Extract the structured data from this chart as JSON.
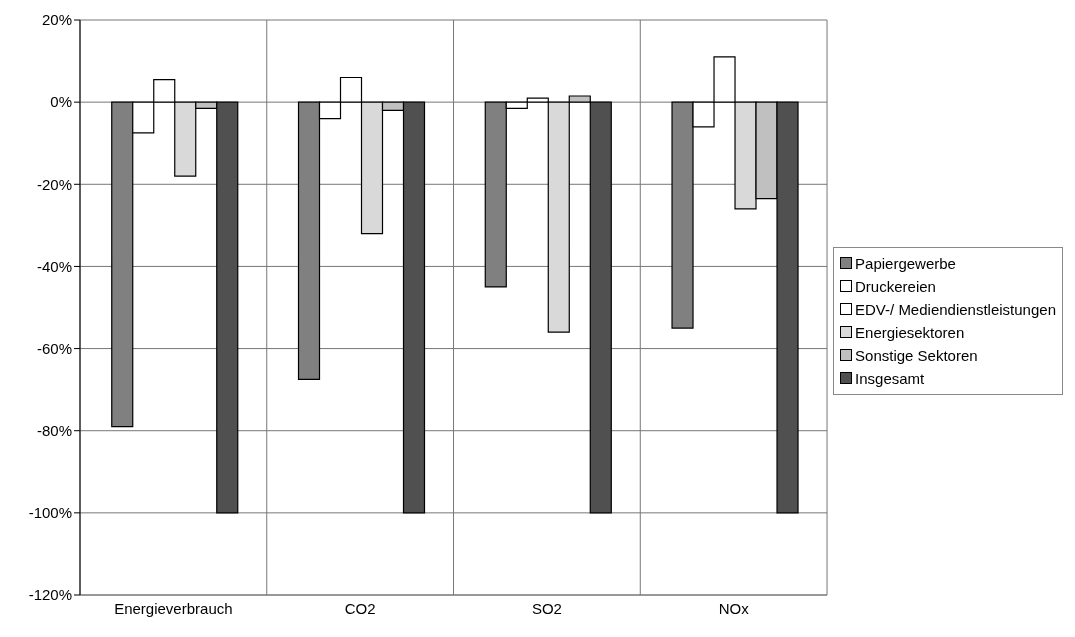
{
  "chart_data": {
    "type": "bar",
    "categories": [
      "Energieverbrauch",
      "CO2",
      "SO2",
      "NOx"
    ],
    "series": [
      {
        "name": "Papiergewerbe",
        "color": "#808080",
        "values": [
          -79,
          -67.5,
          -45,
          -55
        ]
      },
      {
        "name": "Druckereien",
        "color": "#ffffff",
        "values": [
          -7.5,
          -4,
          -1.5,
          -6
        ]
      },
      {
        "name": "EDV-/ Mediendienstleistungen",
        "color": "#ffffff",
        "values": [
          5.5,
          6,
          1,
          11
        ]
      },
      {
        "name": "Energiesektoren",
        "color": "#d9d9d9",
        "values": [
          -18,
          -32,
          -56,
          -26
        ]
      },
      {
        "name": "Sonstige Sektoren",
        "color": "#c0c0c0",
        "values": [
          -1.5,
          -2,
          1.5,
          -23.5
        ]
      },
      {
        "name": "Insgesamt",
        "color": "#505050",
        "values": [
          -100,
          -100,
          -100,
          -100
        ]
      }
    ],
    "ylim": [
      -120,
      20
    ],
    "yticks": [
      {
        "value": -120,
        "label": "-120%"
      },
      {
        "value": -100,
        "label": "-100%"
      },
      {
        "value": -80,
        "label": "-80%"
      },
      {
        "value": -60,
        "label": "-60%"
      },
      {
        "value": -40,
        "label": "-40%"
      },
      {
        "value": -20,
        "label": "-20%"
      },
      {
        "value": 0,
        "label": "0%"
      },
      {
        "value": 20,
        "label": "20%"
      }
    ],
    "grid": true,
    "legend": "right"
  }
}
